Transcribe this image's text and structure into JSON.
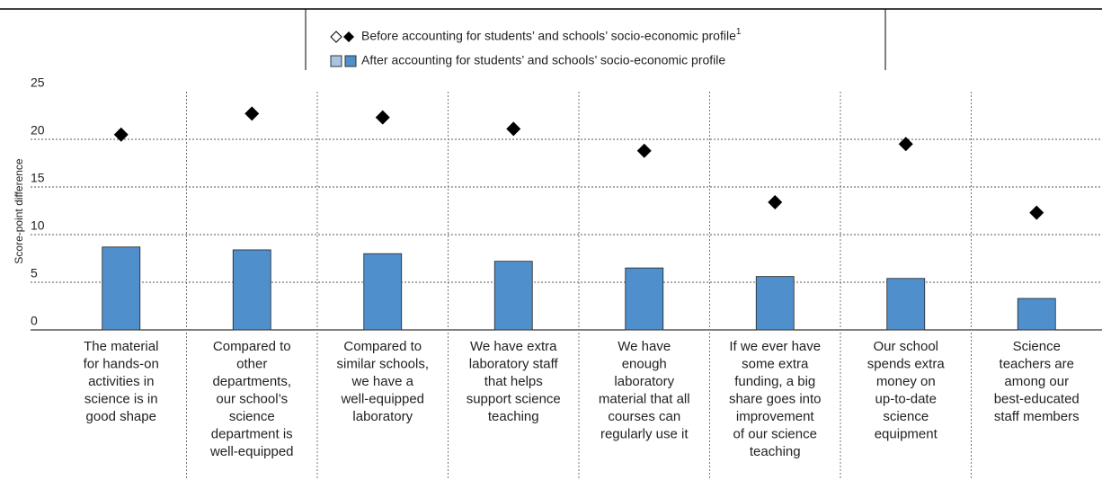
{
  "chart_data": {
    "type": "bar",
    "ylabel": "Score-point difference",
    "ylim": [
      0,
      25
    ],
    "yticks": [
      0,
      5,
      10,
      15,
      20,
      25
    ],
    "grid": true,
    "categories": [
      [
        "The material",
        "for hands-on",
        "activities in",
        "science is in",
        "good shape"
      ],
      [
        "Compared to",
        "other",
        "departments,",
        "our school’s",
        "science",
        "department is",
        "well-equipped"
      ],
      [
        "Compared to",
        "similar schools,",
        "we have a",
        "well-equipped",
        "laboratory"
      ],
      [
        "We have extra",
        "laboratory staff",
        "that helps",
        "support science",
        "teaching"
      ],
      [
        "We have",
        "enough",
        "laboratory",
        "material that all",
        "courses can",
        "regularly use it"
      ],
      [
        "If we ever have",
        "some extra",
        "funding, a big",
        "share goes into",
        "improvement",
        "of our science",
        "teaching"
      ],
      [
        "Our school",
        "spends extra",
        "money on",
        "up-to-date",
        "science",
        "equipment"
      ],
      [
        "Science",
        "teachers are",
        "among our",
        "best-educated",
        "staff members"
      ]
    ],
    "series": [
      {
        "name": "Before accounting for students’ and schools’ socio-economic profile",
        "footnote": "1",
        "mark": "diamond",
        "color": "#000000",
        "alt_color": "#ffffff",
        "values": [
          20.5,
          22.7,
          22.3,
          21.1,
          18.8,
          13.4,
          19.5,
          12.3
        ]
      },
      {
        "name": "After accounting for students’ and schools’ socio-economic profile",
        "mark": "bar",
        "color": "#4f8fcc",
        "alt_color": "#a9c4e2",
        "values": [
          8.7,
          8.4,
          8.0,
          7.2,
          6.5,
          5.6,
          5.4,
          3.3
        ]
      }
    ]
  }
}
